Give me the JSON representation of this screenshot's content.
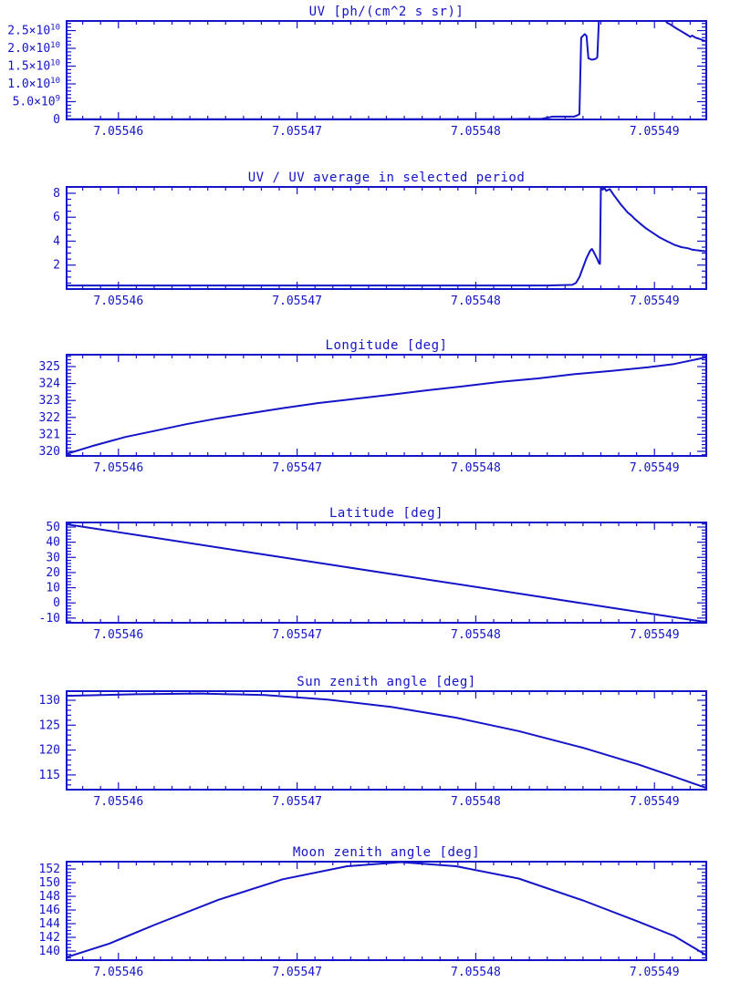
{
  "page": {
    "background": "#ffffff",
    "accent": "#1414c8"
  },
  "chart_data": [
    {
      "type": "line",
      "title": "UV [ph/(cm^2 s sr)]",
      "xlabel": "",
      "ylabel": "",
      "xlim": [
        7.0554571,
        7.0554929
      ],
      "ylim": [
        0,
        27700000000
      ],
      "xticks": [
        {
          "v": 7.05546,
          "label": "7.05546"
        },
        {
          "v": 7.05547,
          "label": "7.05547"
        },
        {
          "v": 7.05548,
          "label": "7.05548"
        },
        {
          "v": 7.05549,
          "label": "7.05549"
        }
      ],
      "xminor": 1e-06,
      "yticks": [
        {
          "v": 0,
          "label": "0"
        },
        {
          "v": 5000000000,
          "label": "5.0×10^9"
        },
        {
          "v": 10000000000,
          "label": "1.0×10^10"
        },
        {
          "v": 15000000000,
          "label": "1.5×10^10"
        },
        {
          "v": 20000000000,
          "label": "2.0×10^10"
        },
        {
          "v": 25000000000,
          "label": "2.5×10^10"
        }
      ],
      "yminor": 1000000000,
      "points": [
        [
          7.0554571,
          50000000
        ],
        [
          7.0554687,
          50000000
        ],
        [
          7.0554814,
          100000000
        ],
        [
          7.0554837,
          200000000
        ],
        [
          7.0554841,
          600000000
        ],
        [
          7.0554843,
          800000000
        ],
        [
          7.0554855,
          800000000
        ],
        [
          7.0554857,
          1200000000
        ],
        [
          7.0554858,
          1500000000
        ],
        [
          7.0554859,
          23000000000
        ],
        [
          7.0554861,
          24000000000
        ],
        [
          7.0554862,
          23500000000
        ],
        [
          7.0554863,
          17200000000
        ],
        [
          7.0554865,
          16800000000
        ],
        [
          7.0554867,
          17000000000
        ],
        [
          7.0554868,
          17500000000
        ],
        [
          7.0554869,
          29000000000
        ],
        [
          7.0554905,
          29000000000
        ],
        [
          7.0554907,
          27200000000
        ],
        [
          7.0554909,
          26700000000
        ],
        [
          7.0554911,
          26000000000
        ],
        [
          7.0554913,
          25400000000
        ],
        [
          7.0554915,
          24800000000
        ],
        [
          7.0554917,
          24200000000
        ],
        [
          7.0554919,
          23600000000
        ],
        [
          7.055492,
          23200000000
        ],
        [
          7.0554921,
          23600000000
        ],
        [
          7.0554923,
          23000000000
        ],
        [
          7.0554925,
          22700000000
        ],
        [
          7.0554927,
          22300000000
        ],
        [
          7.0554929,
          22000000000
        ]
      ]
    },
    {
      "type": "line",
      "title": "UV / UV average in selected period",
      "xlabel": "",
      "ylabel": "",
      "xlim": [
        7.0554571,
        7.0554929
      ],
      "ylim": [
        0,
        8.53
      ],
      "xticks": [
        {
          "v": 7.05546,
          "label": "7.05546"
        },
        {
          "v": 7.05547,
          "label": "7.05547"
        },
        {
          "v": 7.05548,
          "label": "7.05548"
        },
        {
          "v": 7.05549,
          "label": "7.05549"
        }
      ],
      "xminor": 1e-06,
      "yticks": [
        {
          "v": 2,
          "label": "2"
        },
        {
          "v": 4,
          "label": "4"
        },
        {
          "v": 6,
          "label": "6"
        },
        {
          "v": 8,
          "label": "8"
        }
      ],
      "yminor": 0.5,
      "points": [
        [
          7.0554571,
          0.3
        ],
        [
          7.0554738,
          0.3
        ],
        [
          7.055484,
          0.3
        ],
        [
          7.0554854,
          0.35
        ],
        [
          7.0554856,
          0.5
        ],
        [
          7.0554858,
          1.0
        ],
        [
          7.055486,
          1.8
        ],
        [
          7.0554862,
          2.6
        ],
        [
          7.0554864,
          3.2
        ],
        [
          7.0554865,
          3.35
        ],
        [
          7.0554866,
          3.1
        ],
        [
          7.0554868,
          2.5
        ],
        [
          7.0554869,
          2.15
        ],
        [
          7.05548695,
          2.1
        ],
        [
          7.055487,
          8.5
        ],
        [
          7.0554871,
          8.3
        ],
        [
          7.0554872,
          8.45
        ],
        [
          7.0554873,
          8.2
        ],
        [
          7.0554875,
          8.35
        ],
        [
          7.0554877,
          7.9
        ],
        [
          7.0554879,
          7.5
        ],
        [
          7.0554881,
          7.1
        ],
        [
          7.0554883,
          6.75
        ],
        [
          7.0554885,
          6.4
        ],
        [
          7.0554887,
          6.15
        ],
        [
          7.0554889,
          5.85
        ],
        [
          7.0554891,
          5.6
        ],
        [
          7.0554893,
          5.35
        ],
        [
          7.0554895,
          5.1
        ],
        [
          7.0554897,
          4.9
        ],
        [
          7.0554899,
          4.7
        ],
        [
          7.0554901,
          4.5
        ],
        [
          7.0554903,
          4.3
        ],
        [
          7.0554905,
          4.15
        ],
        [
          7.0554907,
          4.0
        ],
        [
          7.0554909,
          3.85
        ],
        [
          7.0554911,
          3.7
        ],
        [
          7.0554913,
          3.6
        ],
        [
          7.0554915,
          3.5
        ],
        [
          7.0554917,
          3.45
        ],
        [
          7.0554919,
          3.4
        ],
        [
          7.0554921,
          3.3
        ],
        [
          7.0554923,
          3.25
        ],
        [
          7.0554926,
          3.2
        ],
        [
          7.0554927,
          3.18
        ],
        [
          7.0554929,
          3.15
        ]
      ]
    },
    {
      "type": "line",
      "title": "Longitude [deg]",
      "xlabel": "",
      "ylabel": "",
      "xlim": [
        7.0554571,
        7.0554929
      ],
      "ylim": [
        319.73,
        325.7
      ],
      "xticks": [
        {
          "v": 7.05546,
          "label": "7.05546"
        },
        {
          "v": 7.05547,
          "label": "7.05547"
        },
        {
          "v": 7.05548,
          "label": "7.05548"
        },
        {
          "v": 7.05549,
          "label": "7.05549"
        }
      ],
      "xminor": 1e-06,
      "yticks": [
        {
          "v": 320,
          "label": "320"
        },
        {
          "v": 321,
          "label": "321"
        },
        {
          "v": 322,
          "label": "322"
        },
        {
          "v": 323,
          "label": "323"
        },
        {
          "v": 324,
          "label": "324"
        },
        {
          "v": 325,
          "label": "325"
        }
      ],
      "yminor": 0.2,
      "points": [
        [
          7.0554571,
          319.85
        ],
        [
          7.0554585,
          320.3
        ],
        [
          7.0554604,
          320.85
        ],
        [
          7.055462,
          321.2
        ],
        [
          7.0554638,
          321.6
        ],
        [
          7.0554656,
          321.95
        ],
        [
          7.0554674,
          322.25
        ],
        [
          7.0554692,
          322.55
        ],
        [
          7.0554712,
          322.85
        ],
        [
          7.0554733,
          323.1
        ],
        [
          7.0554753,
          323.35
        ],
        [
          7.0554773,
          323.6
        ],
        [
          7.0554794,
          323.85
        ],
        [
          7.0554814,
          324.1
        ],
        [
          7.0554835,
          324.3
        ],
        [
          7.0554855,
          324.55
        ],
        [
          7.0554876,
          324.75
        ],
        [
          7.0554896,
          324.95
        ],
        [
          7.0554911,
          325.15
        ],
        [
          7.0554929,
          325.55
        ]
      ]
    },
    {
      "type": "line",
      "title": "Latitude [deg]",
      "xlabel": "",
      "ylabel": "",
      "xlim": [
        7.0554571,
        7.0554929
      ],
      "ylim": [
        -13.1,
        53.0
      ],
      "xticks": [
        {
          "v": 7.05546,
          "label": "7.05546"
        },
        {
          "v": 7.05547,
          "label": "7.05547"
        },
        {
          "v": 7.05548,
          "label": "7.05548"
        },
        {
          "v": 7.05549,
          "label": "7.05549"
        }
      ],
      "xminor": 1e-06,
      "yticks": [
        {
          "v": -10,
          "label": "-10"
        },
        {
          "v": 0,
          "label": "0"
        },
        {
          "v": 10,
          "label": "10"
        },
        {
          "v": 20,
          "label": "20"
        },
        {
          "v": 30,
          "label": "30"
        },
        {
          "v": 40,
          "label": "40"
        },
        {
          "v": 50,
          "label": "50"
        }
      ],
      "yminor": 2,
      "points": [
        [
          7.0554571,
          51.8
        ],
        [
          7.0554622,
          42.6
        ],
        [
          7.0554673,
          33.4
        ],
        [
          7.0554724,
          24.2
        ],
        [
          7.0554775,
          15.0
        ],
        [
          7.0554826,
          5.8
        ],
        [
          7.0554877,
          -3.4
        ],
        [
          7.0554929,
          -12.7
        ]
      ]
    },
    {
      "type": "line",
      "title": "Sun zenith angle [deg]",
      "xlabel": "",
      "ylabel": "",
      "xlim": [
        7.0554571,
        7.0554929
      ],
      "ylim": [
        112.05,
        131.83
      ],
      "xticks": [
        {
          "v": 7.05546,
          "label": "7.05546"
        },
        {
          "v": 7.05547,
          "label": "7.05547"
        },
        {
          "v": 7.05548,
          "label": "7.05548"
        },
        {
          "v": 7.05549,
          "label": "7.05549"
        }
      ],
      "xminor": 1e-06,
      "yticks": [
        {
          "v": 115,
          "label": "115"
        },
        {
          "v": 120,
          "label": "120"
        },
        {
          "v": 125,
          "label": "125"
        },
        {
          "v": 130,
          "label": "130"
        }
      ],
      "yminor": 1,
      "points": [
        [
          7.0554571,
          130.9
        ],
        [
          7.055461,
          131.2
        ],
        [
          7.0554646,
          131.35
        ],
        [
          7.0554682,
          131.05
        ],
        [
          7.0554717,
          130.15
        ],
        [
          7.0554753,
          128.65
        ],
        [
          7.0554789,
          126.5
        ],
        [
          7.0554824,
          123.8
        ],
        [
          7.055486,
          120.45
        ],
        [
          7.0554891,
          117.1
        ],
        [
          7.0554911,
          114.65
        ],
        [
          7.0554929,
          112.4
        ]
      ]
    },
    {
      "type": "line",
      "title": "Moon zenith angle [deg]",
      "xlabel": "",
      "ylabel": "",
      "xlim": [
        7.0554571,
        7.0554929
      ],
      "ylim": [
        138.67,
        153.07
      ],
      "xticks": [
        {
          "v": 7.05546,
          "label": "7.05546"
        },
        {
          "v": 7.05547,
          "label": "7.05547"
        },
        {
          "v": 7.05548,
          "label": "7.05548"
        },
        {
          "v": 7.05549,
          "label": "7.05549"
        }
      ],
      "xminor": 1e-06,
      "yticks": [
        {
          "v": 140,
          "label": "140"
        },
        {
          "v": 142,
          "label": "142"
        },
        {
          "v": 144,
          "label": "144"
        },
        {
          "v": 146,
          "label": "146"
        },
        {
          "v": 148,
          "label": "148"
        },
        {
          "v": 150,
          "label": "150"
        },
        {
          "v": 152,
          "label": "152"
        }
      ],
      "yminor": 0.5,
      "points": [
        [
          7.0554571,
          139.1
        ],
        [
          7.0554595,
          141.1
        ],
        [
          7.055462,
          143.8
        ],
        [
          7.0554656,
          147.5
        ],
        [
          7.0554692,
          150.5
        ],
        [
          7.0554728,
          152.4
        ],
        [
          7.0554758,
          153.0
        ],
        [
          7.0554789,
          152.4
        ],
        [
          7.0554824,
          150.6
        ],
        [
          7.055486,
          147.4
        ],
        [
          7.0554891,
          144.3
        ],
        [
          7.0554911,
          142.2
        ],
        [
          7.0554929,
          139.4
        ]
      ]
    }
  ]
}
